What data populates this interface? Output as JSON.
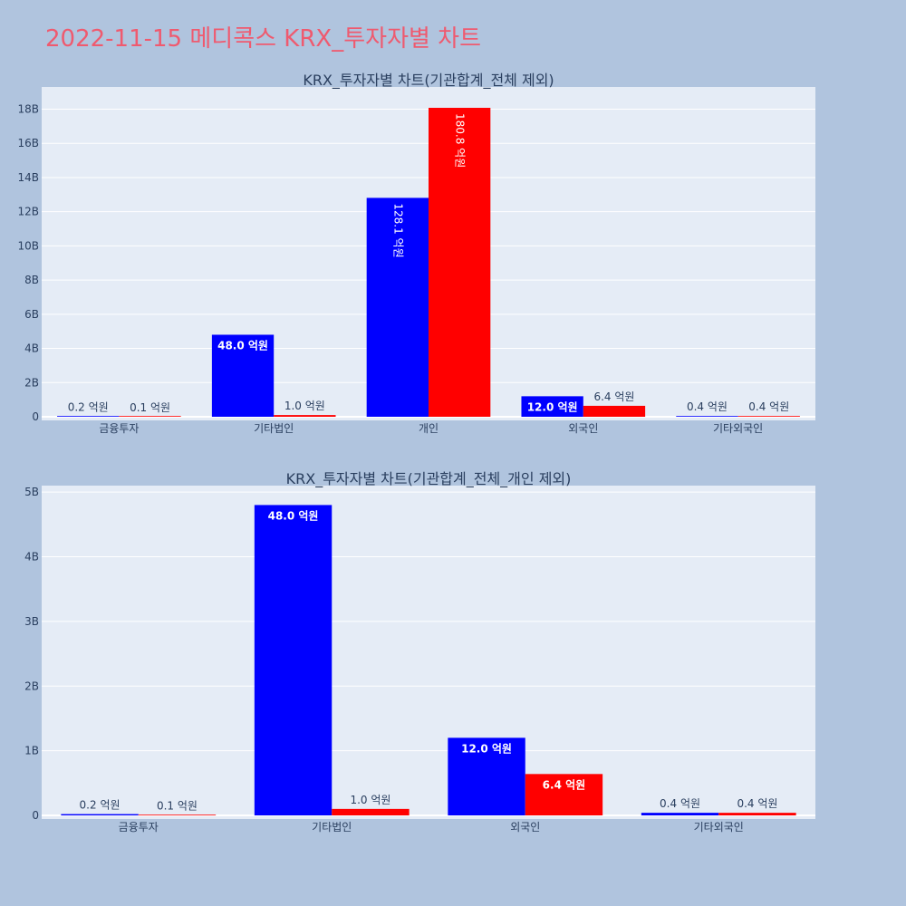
{
  "page": {
    "title": "2022-11-15 메디콕스 KRX_투자자별 차트"
  },
  "colors": {
    "background": "#b0c4de",
    "plot_background": "#e5ecf6",
    "title": "#ef5a6f",
    "series_buy": "#0000ff",
    "series_sell": "#ff0000",
    "text": "#2a3f5f"
  },
  "chart_data": [
    {
      "type": "bar",
      "title": "KRX_투자자별 차트(기관합계_전체 제외)",
      "categories": [
        "금융투자",
        "기타법인",
        "개인",
        "외국인",
        "기타외국인"
      ],
      "series": [
        {
          "color": "#0000ff",
          "values": [
            20000000,
            4800000000,
            12810000000,
            1200000000,
            40000000
          ],
          "labels": [
            "0.2 억원",
            "48.0 억원",
            "128.1 억원",
            "12.0 억원",
            "0.4 억원"
          ]
        },
        {
          "color": "#ff0000",
          "values": [
            10000000,
            100000000,
            18080000000,
            640000000,
            40000000
          ],
          "labels": [
            "0.1 억원",
            "1.0 억원",
            "180.8 억원",
            "6.4 억원",
            "0.4 억원"
          ]
        }
      ],
      "yticks": [
        "0",
        "2B",
        "4B",
        "6B",
        "8B",
        "10B",
        "12B",
        "14B",
        "16B",
        "18B"
      ],
      "ylim": [
        0,
        19300000000
      ],
      "grid": true,
      "legend": "none"
    },
    {
      "type": "bar",
      "title": "KRX_투자자별 차트(기관합계_전체_개인 제외)",
      "categories": [
        "금융투자",
        "기타법인",
        "외국인",
        "기타외국인"
      ],
      "series": [
        {
          "color": "#0000ff",
          "values": [
            20000000,
            4800000000,
            1200000000,
            40000000
          ],
          "labels": [
            "0.2 억원",
            "48.0 억원",
            "12.0 억원",
            "0.4 억원"
          ]
        },
        {
          "color": "#ff0000",
          "values": [
            10000000,
            100000000,
            640000000,
            40000000
          ],
          "labels": [
            "0.1 억원",
            "1.0 억원",
            "6.4 억원",
            "0.4 억원"
          ]
        }
      ],
      "yticks": [
        "0",
        "1B",
        "2B",
        "3B",
        "4B",
        "5B"
      ],
      "ylim": [
        0,
        5100000000
      ],
      "grid": true,
      "legend": "none"
    }
  ]
}
